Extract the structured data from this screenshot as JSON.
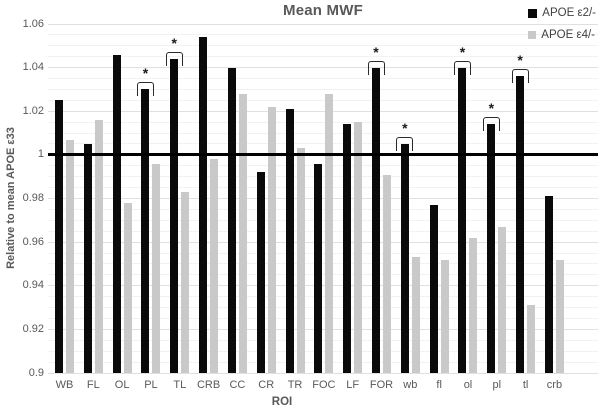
{
  "title": "Mean MWF",
  "accent_colors": {
    "series_black": "#0a0a0a",
    "series_gray": "#c9c9c9",
    "text_gray": "#595959",
    "gridline_major": "#e0e0e0",
    "gridline_minor": "#f2f2f2",
    "reference_line": "#000000"
  },
  "chart_data": {
    "type": "bar",
    "title": "Mean MWF",
    "xlabel": "ROI",
    "ylabel": "Relative to mean APOE ε33",
    "ylim": [
      0.9,
      1.06
    ],
    "ytick_step": 0.02,
    "minor_grid_step": 0.005,
    "grid": true,
    "legend_position": "top-right",
    "reference_line_y": 1.0,
    "categories": [
      "WB",
      "FL",
      "OL",
      "PL",
      "TL",
      "CRB",
      "CC",
      "CR",
      "TR",
      "FOC",
      "LF",
      "FOR",
      "wb",
      "fl",
      "ol",
      "pl",
      "tl",
      "crb"
    ],
    "series": [
      {
        "name": "APOE ε2/-",
        "color": "#0a0a0a",
        "values": [
          1.025,
          1.005,
          1.046,
          1.03,
          1.044,
          1.054,
          1.04,
          0.992,
          1.021,
          0.996,
          1.014,
          1.04,
          1.005,
          0.977,
          1.04,
          1.014,
          1.036,
          0.981
        ]
      },
      {
        "name": "APOE ε4/-",
        "color": "#c9c9c9",
        "values": [
          1.007,
          1.016,
          0.978,
          0.996,
          0.983,
          0.998,
          1.028,
          1.022,
          1.003,
          1.028,
          1.015,
          0.991,
          0.953,
          0.952,
          0.962,
          0.967,
          0.931,
          0.952
        ]
      }
    ],
    "significance_marker": "*",
    "significant_categories": [
      false,
      false,
      false,
      true,
      true,
      false,
      false,
      false,
      false,
      false,
      false,
      true,
      true,
      false,
      true,
      true,
      true,
      false
    ]
  }
}
